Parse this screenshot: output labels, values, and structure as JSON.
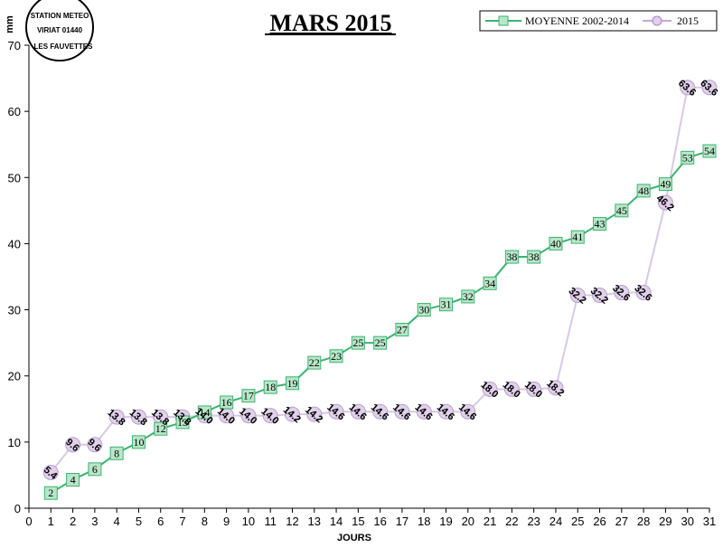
{
  "chart_data": {
    "type": "line",
    "title": "MARS 2015",
    "xlabel": "JOURS",
    "ylabel": "mm",
    "xlim": [
      0,
      31
    ],
    "ylim": [
      0,
      70
    ],
    "x_ticks": [
      0,
      1,
      2,
      3,
      4,
      5,
      6,
      7,
      8,
      9,
      10,
      11,
      12,
      13,
      14,
      15,
      16,
      17,
      18,
      19,
      20,
      21,
      22,
      23,
      24,
      25,
      26,
      27,
      28,
      29,
      30,
      31
    ],
    "y_ticks": [
      0,
      10,
      20,
      30,
      40,
      50,
      60,
      70
    ],
    "x": [
      1,
      2,
      3,
      4,
      5,
      6,
      7,
      8,
      9,
      10,
      11,
      12,
      13,
      14,
      15,
      16,
      17,
      18,
      19,
      20,
      21,
      22,
      23,
      24,
      25,
      26,
      27,
      28,
      29,
      30,
      31
    ],
    "legend_position": "top-right",
    "series": [
      {
        "name": "MOYENNE 2002-2014",
        "color": "#3cb371",
        "marker": "square",
        "values": [
          2.3,
          4.3,
          5.9,
          8.3,
          10,
          12,
          13,
          14.5,
          16,
          17,
          18.3,
          18.9,
          22,
          23,
          25,
          25,
          27,
          30,
          30.8,
          32,
          34,
          38,
          38,
          40,
          41,
          43,
          45,
          48,
          49,
          53,
          54
        ],
        "labels": [
          "2",
          "4",
          "6",
          "8",
          "10",
          "12",
          "13",
          "14",
          "16",
          "17",
          "18",
          "19",
          "22",
          "23",
          "25",
          "25",
          "27",
          "30",
          "31",
          "32",
          "34",
          "38",
          "38",
          "40",
          "41",
          "43",
          "45",
          "48",
          "49",
          "53",
          "54"
        ]
      },
      {
        "name": "2015",
        "color": "#c8a8d8",
        "marker": "circle",
        "values": [
          5.4,
          9.6,
          9.6,
          13.8,
          13.8,
          13.8,
          13.8,
          14.0,
          14.0,
          14.0,
          14.0,
          14.2,
          14.2,
          14.6,
          14.6,
          14.6,
          14.6,
          14.6,
          14.6,
          14.6,
          18.0,
          18.0,
          18.0,
          18.2,
          32.2,
          32.2,
          32.6,
          32.6,
          46.2,
          63.6,
          63.6
        ],
        "labels": [
          "5.4",
          "9.6",
          "9.6",
          "13.8",
          "13.8",
          "13.8",
          "13.8",
          "14.0",
          "14.0",
          "14.0",
          "14.0",
          "14.2",
          "14.2",
          "14.6",
          "14.6",
          "14.6",
          "14.6",
          "14.6",
          "14.6",
          "14.6",
          "18.0",
          "18.0",
          "18.0",
          "18.2",
          "32.2",
          "32.2",
          "32.6",
          "32.6",
          "46.2",
          "63.6",
          "63.6"
        ]
      }
    ]
  },
  "stamp": {
    "line1": "STATION METEO",
    "line2": "VIRIAT 01440",
    "line3": "LES FAUVETTES"
  }
}
